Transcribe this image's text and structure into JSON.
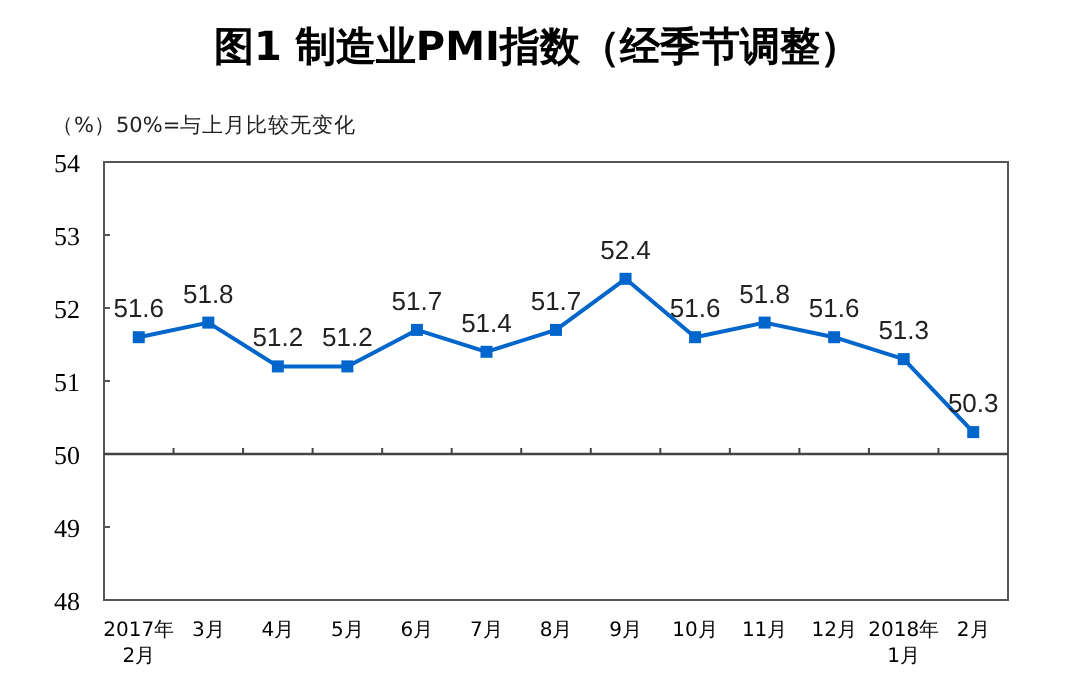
{
  "chart_data": {
    "type": "line",
    "title": "图1 制造业PMI指数（经季节调整）",
    "subtitle": "（%）50%=与上月比较无变化",
    "categories": [
      "2017年\n2月",
      "3月",
      "4月",
      "5月",
      "6月",
      "7月",
      "8月",
      "9月",
      "10月",
      "11月",
      "12月",
      "2018年\n1月",
      "2月"
    ],
    "values": [
      51.6,
      51.8,
      51.2,
      51.2,
      51.7,
      51.4,
      51.7,
      52.4,
      51.6,
      51.8,
      51.6,
      51.3,
      50.3
    ],
    "color": "#0066cc",
    "marker": "square",
    "data_labels": true,
    "ylim": [
      48,
      54
    ],
    "yticks": [
      48,
      49,
      50,
      51,
      52,
      53,
      54
    ],
    "ref_lines": [
      {
        "axis": "y",
        "value": 50
      }
    ]
  }
}
